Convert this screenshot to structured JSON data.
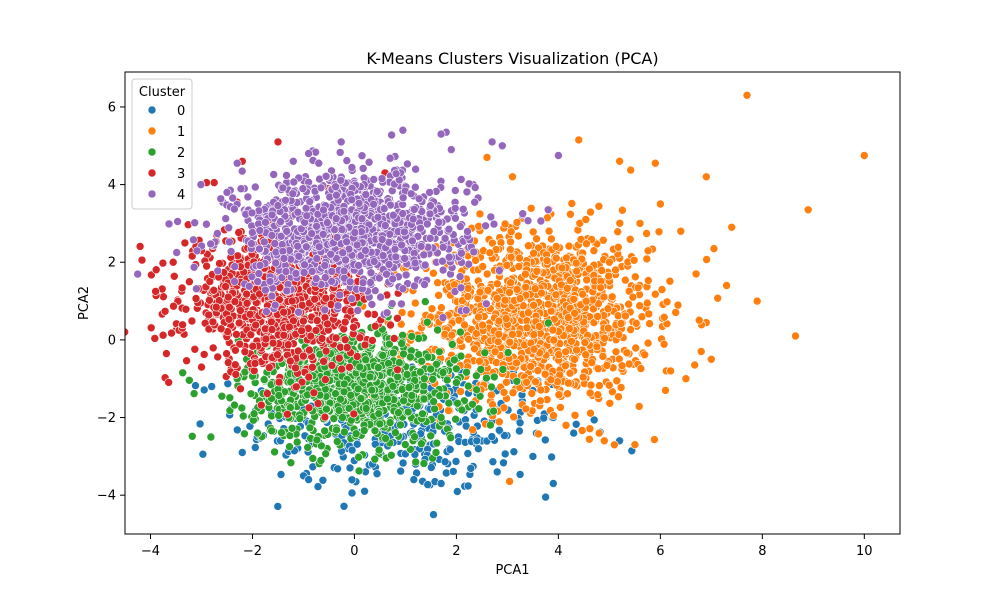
{
  "chart_data": {
    "type": "scatter",
    "title": "K-Means Clusters Visualization (PCA)",
    "xlabel": "PCA1",
    "ylabel": "PCA2",
    "xlim": [
      -4.5,
      10.7
    ],
    "ylim": [
      -5.0,
      6.9
    ],
    "x_ticks": [
      -4,
      -2,
      0,
      2,
      4,
      6,
      8,
      10
    ],
    "y_ticks": [
      -4,
      -2,
      0,
      2,
      4,
      6
    ],
    "x_tick_labels": [
      "−4",
      "−2",
      "0",
      "2",
      "4",
      "6",
      "8",
      "10"
    ],
    "y_tick_labels": [
      "−4",
      "−2",
      "0",
      "2",
      "4",
      "6"
    ],
    "grid": false,
    "legend": {
      "title": "Cluster",
      "placement": "top-left"
    },
    "series": [
      {
        "name": "0",
        "color": "#1f77b4",
        "centroid": [
          1.0,
          -2.2
        ],
        "spread": [
          1.6,
          0.9
        ],
        "cloud_count": 320,
        "x": [
          1.55,
          3.75,
          1.7,
          3.9,
          -2.2,
          -2.8,
          5.2,
          3.5,
          4.3,
          3.9,
          2.8,
          0.2,
          -1.0,
          1.2,
          -0.9,
          2.4
        ],
        "y": [
          -4.5,
          -4.05,
          -3.7,
          -3.7,
          -2.9,
          -1.2,
          -2.6,
          -3.0,
          -2.4,
          -2.0,
          -3.4,
          -3.9,
          -3.5,
          -3.2,
          -3.6,
          -2.6
        ]
      },
      {
        "name": "1",
        "color": "#ff7f0e",
        "centroid": [
          3.6,
          0.6
        ],
        "spread": [
          1.1,
          1.1
        ],
        "cloud_count": 1300,
        "x": [
          7.7,
          10.0,
          4.4,
          8.9,
          8.65,
          7.9,
          5.5,
          6.9,
          7.0,
          6.5,
          6.1,
          5.9,
          7.4,
          7.05,
          6.0,
          6.8,
          5.2,
          4.9,
          2.6,
          5.0,
          7.3,
          6.4,
          4.15,
          4.8,
          3.1,
          6.2,
          5.6,
          6.7
        ],
        "y": [
          6.3,
          4.75,
          5.15,
          3.35,
          0.1,
          1.0,
          -2.7,
          4.2,
          -0.5,
          -1.0,
          -1.3,
          4.55,
          2.9,
          2.35,
          3.5,
          -0.3,
          4.6,
          -2.6,
          4.7,
          2.0,
          1.4,
          2.8,
          -2.2,
          -2.4,
          4.2,
          -0.8,
          3.0,
          1.7
        ]
      },
      {
        "name": "2",
        "color": "#2ca02c",
        "centroid": [
          0.0,
          -1.2
        ],
        "spread": [
          1.05,
          0.75
        ],
        "cloud_count": 900,
        "x": [
          -2.6,
          -1.9,
          1.6,
          2.0,
          -2.3,
          1.7
        ],
        "y": [
          -1.45,
          -2.4,
          -2.9,
          -1.1,
          -1.0,
          -2.0
        ]
      },
      {
        "name": "3",
        "color": "#d62728",
        "centroid": [
          -1.5,
          1.0
        ],
        "spread": [
          0.9,
          0.85
        ],
        "cloud_count": 1000,
        "x": [
          -3.9,
          -2.9,
          -3.0,
          -2.2,
          -1.5,
          -2.75,
          -3.0,
          -2.9,
          0.6,
          -0.5
        ],
        "y": [
          1.25,
          4.05,
          -0.7,
          4.6,
          5.1,
          4.05,
          2.3,
          1.9,
          4.3,
          3.9
        ]
      },
      {
        "name": "4",
        "color": "#9467bd",
        "centroid": [
          -0.1,
          2.8
        ],
        "spread": [
          1.15,
          0.75
        ],
        "cloud_count": 1100,
        "x": [
          0.95,
          1.8,
          2.7,
          2.9,
          4.0,
          -2.3,
          1.7,
          -0.9,
          -1.2,
          -0.7,
          3.8,
          3.3,
          -2.5,
          1.9
        ],
        "y": [
          5.4,
          5.35,
          5.1,
          5.0,
          4.75,
          4.55,
          5.3,
          4.8,
          4.6,
          4.55,
          3.35,
          3.25,
          3.8,
          4.9
        ]
      }
    ]
  }
}
